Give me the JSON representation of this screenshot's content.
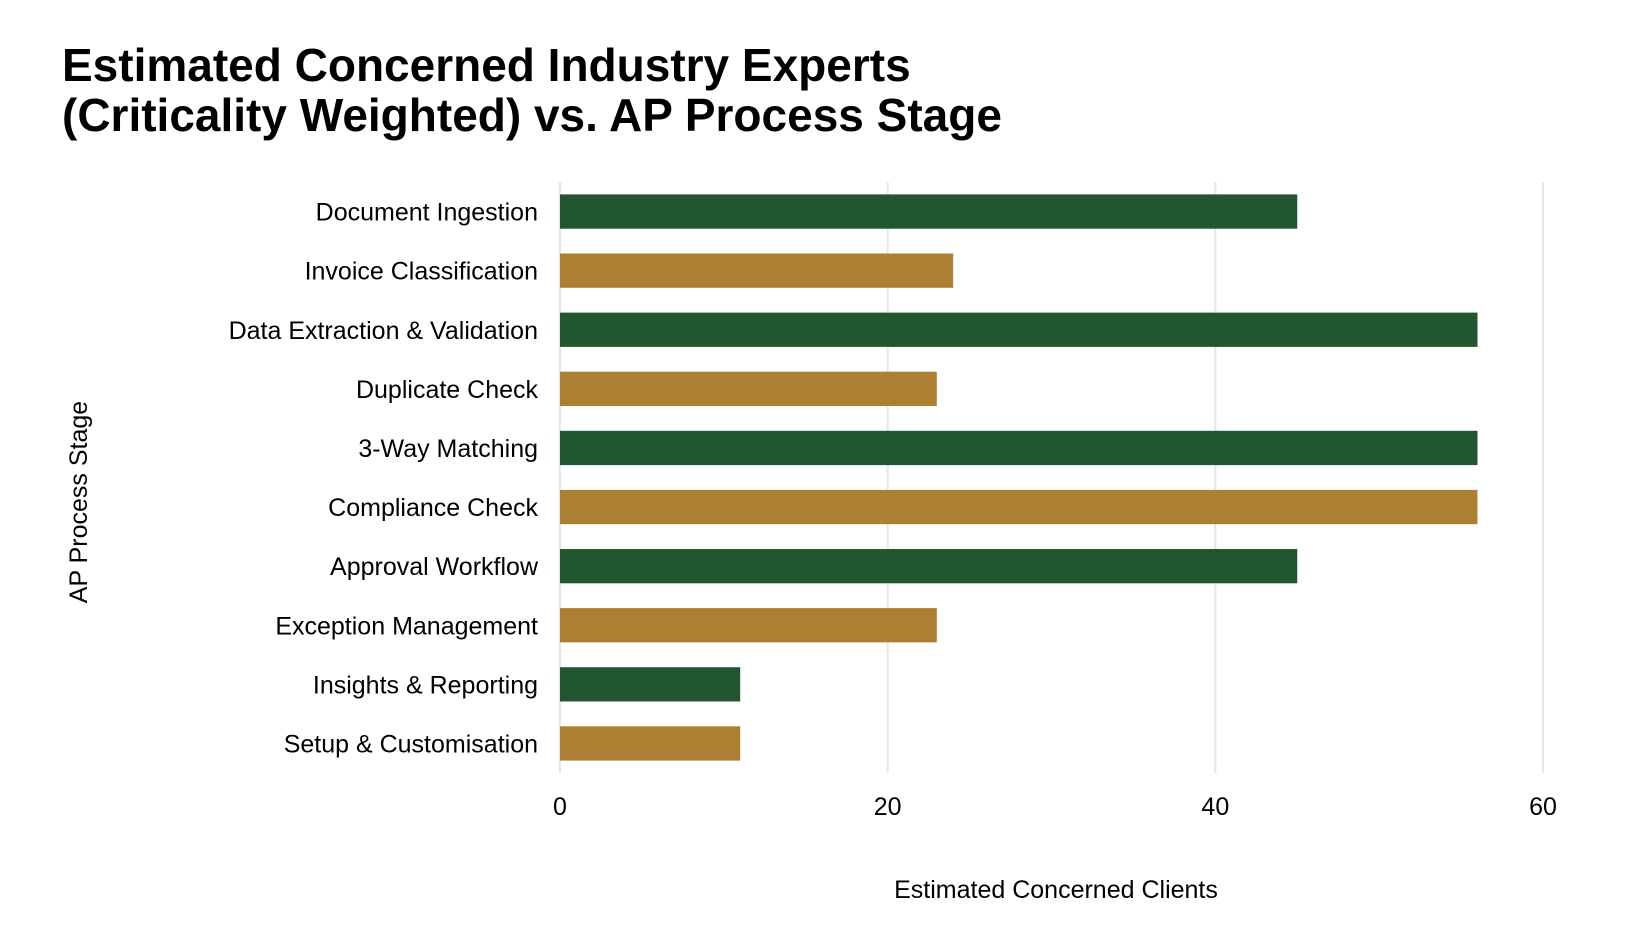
{
  "chart_data": {
    "type": "bar",
    "orientation": "horizontal",
    "title_lines": [
      "Estimated Concerned Industry Experts",
      "(Criticality Weighted) vs. AP Process Stage"
    ],
    "xlabel": "Estimated Concerned Clients",
    "ylabel": "AP Process Stage",
    "xlim": [
      0,
      60
    ],
    "xticks": [
      "0",
      "20",
      "40",
      "60"
    ],
    "categories": [
      "Document Ingestion",
      "Invoice Classification",
      "Data Extraction & Validation",
      "Duplicate Check",
      "3-Way Matching",
      "Compliance Check",
      "Approval Workflow",
      "Exception Management",
      "Insights & Reporting",
      "Setup & Customisation"
    ],
    "values": [
      45,
      24,
      56,
      23,
      56,
      56,
      45,
      23,
      11,
      11
    ],
    "bar_colors": [
      "#225631",
      "#ad7f32",
      "#225631",
      "#ad7f32",
      "#225631",
      "#ad7f32",
      "#225631",
      "#ad7f32",
      "#225631",
      "#ad7f32"
    ],
    "grid": "vertical",
    "grid_color": "#e6e6e6",
    "legend": "none"
  }
}
